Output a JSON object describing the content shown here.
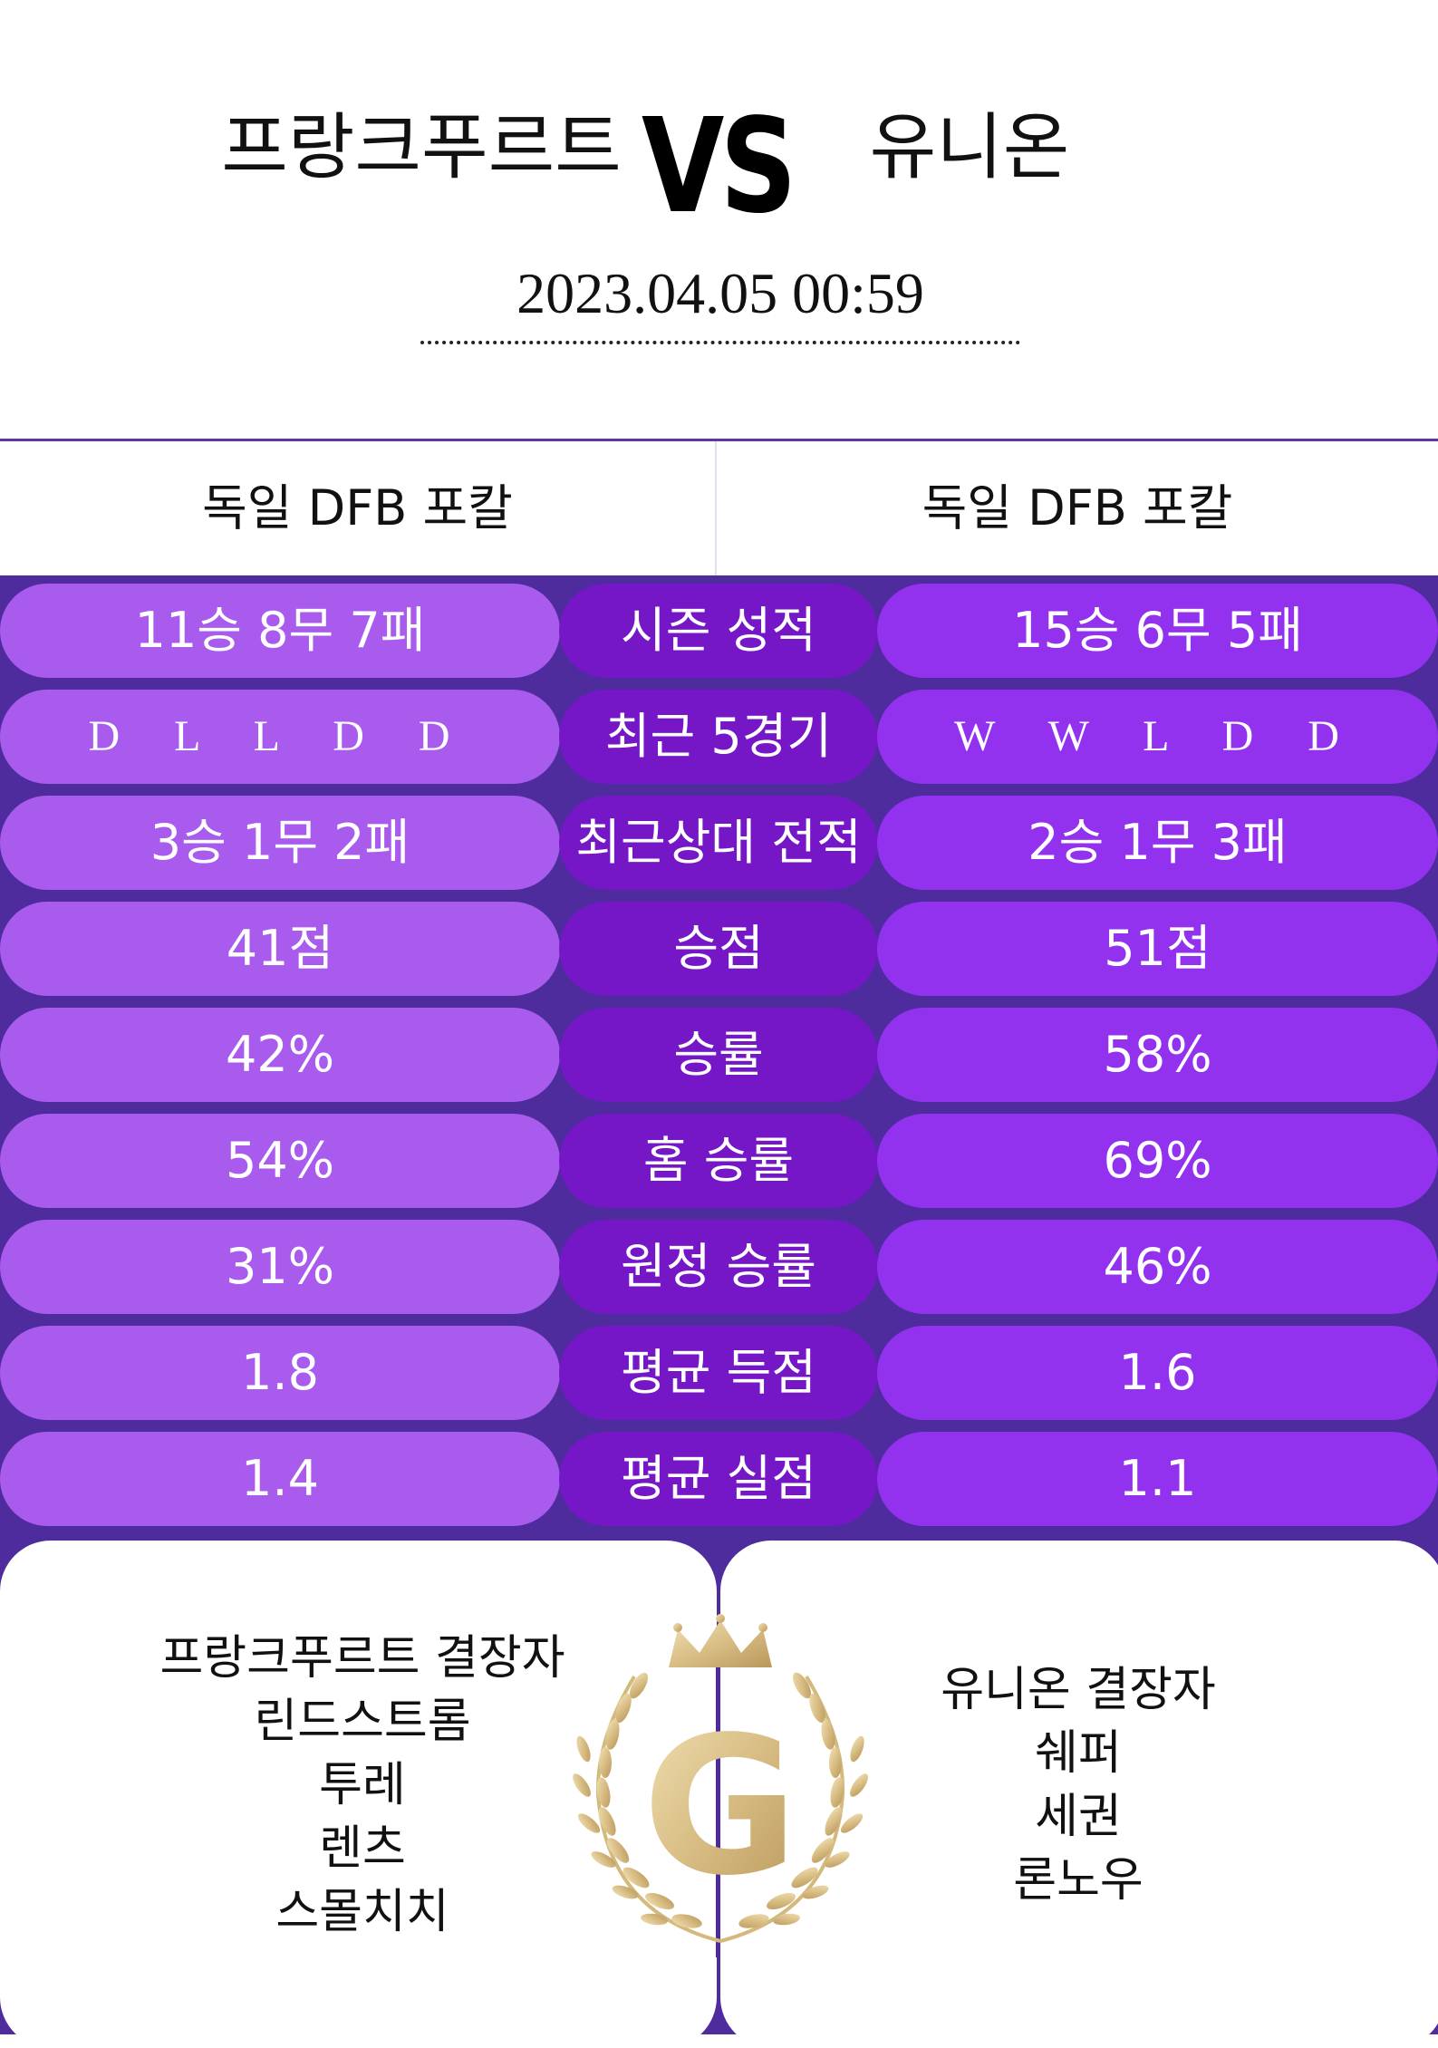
{
  "header": {
    "home_team": "프랑크푸르트",
    "vs_label": "VS",
    "away_team": "유니온",
    "datetime": "2023.04.05  00:59"
  },
  "league": {
    "home": "독일 DFB 포칼",
    "away": "독일 DFB 포칼"
  },
  "stats": [
    {
      "home": "11승 8무 7패",
      "label": "시즌 성적",
      "away": "15승 6무 5패"
    },
    {
      "home": "D L L D D",
      "label": "최근 5경기",
      "away": "W W L D D"
    },
    {
      "home": "3승 1무 2패",
      "label": "최근상대 전적",
      "away": "2승 1무 3패"
    },
    {
      "home": "41점",
      "label": "승점",
      "away": "51점"
    },
    {
      "home": "42%",
      "label": "승률",
      "away": "58%"
    },
    {
      "home": "54%",
      "label": "홈 승률",
      "away": "69%"
    },
    {
      "home": "31%",
      "label": "원정 승률",
      "away": "46%"
    },
    {
      "home": "1.8",
      "label": "평균 득점",
      "away": "1.6"
    },
    {
      "home": "1.4",
      "label": "평균 실점",
      "away": "1.1"
    }
  ],
  "absentees": {
    "home": {
      "title": "프랑크푸르트 결장자",
      "players": [
        "린드스트롬",
        "투레",
        "렌츠",
        "스몰치치"
      ]
    },
    "away": {
      "title": "유니온 결장자",
      "players": [
        "쉐퍼",
        "세권",
        "론노우"
      ]
    }
  },
  "emblem": {
    "letter": "G",
    "icon": "crown-laurel-logo-icon",
    "color": "#d9c08a"
  },
  "colors": {
    "panel_bg": "#4f2c9e",
    "home_pill": "#a85bec",
    "label_pill": "#7516c7",
    "away_pill": "#9232ef"
  }
}
